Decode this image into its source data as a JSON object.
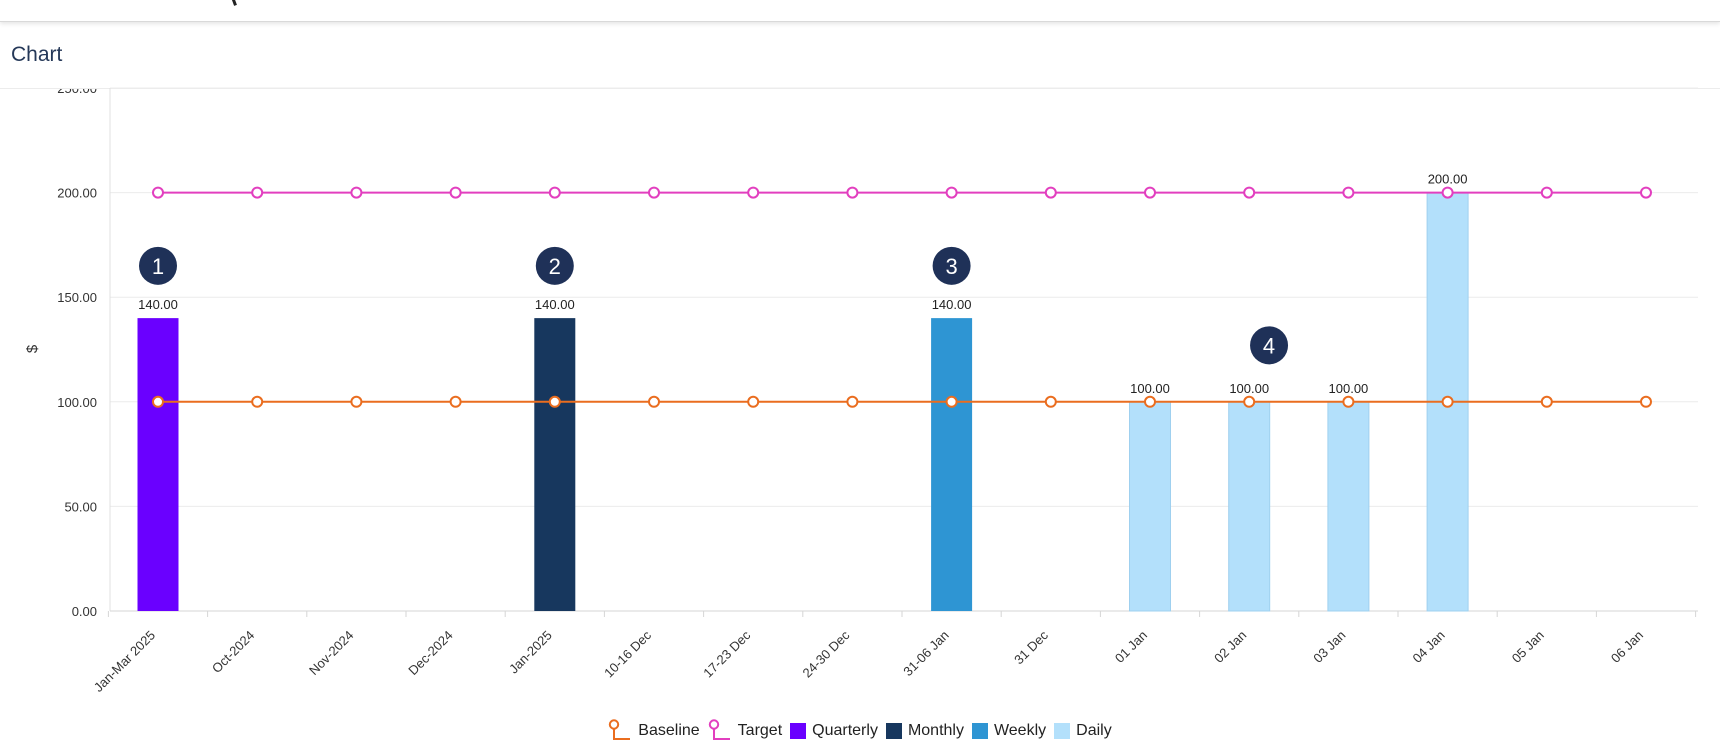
{
  "panel": {
    "title": "Chart"
  },
  "chart_data": {
    "type": "bar",
    "categories": [
      "Jan-Mar 2025",
      "Oct-2024",
      "Nov-2024",
      "Dec-2024",
      "Jan-2025",
      "10-16 Dec",
      "17-23 Dec",
      "24-30 Dec",
      "31-06 Jan",
      "31 Dec",
      "01 Jan",
      "02 Jan",
      "03 Jan",
      "04 Jan",
      "05 Jan",
      "06 Jan"
    ],
    "series": [
      {
        "name": "Quarterly",
        "color": "#6a00ff",
        "values": [
          140,
          null,
          null,
          null,
          null,
          null,
          null,
          null,
          null,
          null,
          null,
          null,
          null,
          null,
          null,
          null
        ]
      },
      {
        "name": "Monthly",
        "color": "#17375e",
        "values": [
          null,
          null,
          null,
          null,
          140,
          null,
          null,
          null,
          null,
          null,
          null,
          null,
          null,
          null,
          null,
          null
        ]
      },
      {
        "name": "Weekly",
        "color": "#2e95d3",
        "values": [
          null,
          null,
          null,
          null,
          null,
          null,
          null,
          null,
          140,
          null,
          null,
          null,
          null,
          null,
          null,
          null
        ]
      },
      {
        "name": "Daily",
        "color": "#b3e0fb",
        "values": [
          null,
          null,
          null,
          null,
          null,
          null,
          null,
          null,
          null,
          null,
          100,
          100,
          100,
          200,
          null,
          null
        ]
      }
    ],
    "lines": [
      {
        "name": "Baseline",
        "color": "#ea6d1f",
        "values": [
          100,
          100,
          100,
          100,
          100,
          100,
          100,
          100,
          100,
          100,
          100,
          100,
          100,
          100,
          100,
          100
        ]
      },
      {
        "name": "Target",
        "color": "#e23fbf",
        "values": [
          200,
          200,
          200,
          200,
          200,
          200,
          200,
          200,
          200,
          200,
          200,
          200,
          200,
          200,
          200,
          200
        ]
      }
    ],
    "data_labels": [
      {
        "index": 0,
        "text": "140.00"
      },
      {
        "index": 4,
        "text": "140.00"
      },
      {
        "index": 8,
        "text": "140.00"
      },
      {
        "index": 10,
        "text": "100.00"
      },
      {
        "index": 11,
        "text": "100.00"
      },
      {
        "index": 12,
        "text": "100.00"
      },
      {
        "index": 13,
        "text": "200.00"
      }
    ],
    "y_ticks": [
      {
        "value": 0,
        "label": "0.00"
      },
      {
        "value": 50,
        "label": "50.00"
      },
      {
        "value": 100,
        "label": "100.00"
      },
      {
        "value": 150,
        "label": "150.00"
      },
      {
        "value": 200,
        "label": "200.00"
      },
      {
        "value": 250,
        "label": "250.00"
      }
    ],
    "ylabel": "$",
    "xlabel": "",
    "ylim": [
      0,
      250
    ],
    "grid": true,
    "legend_position": "bottom-center",
    "markers": [
      {
        "label": "1",
        "index": 0,
        "value": 165
      },
      {
        "label": "2",
        "index": 4,
        "value": 165
      },
      {
        "label": "3",
        "index": 8,
        "value": 165
      },
      {
        "label": "4",
        "index": 11.2,
        "value": 127
      }
    ]
  },
  "legend": {
    "items": [
      {
        "label": "Baseline",
        "kind": "line-marker",
        "color": "#ea6d1f"
      },
      {
        "label": "Target",
        "kind": "line-marker",
        "color": "#e23fbf"
      },
      {
        "label": "Quarterly",
        "kind": "swatch",
        "color": "#6a00ff"
      },
      {
        "label": "Monthly",
        "kind": "swatch",
        "color": "#17375e"
      },
      {
        "label": "Weekly",
        "kind": "swatch",
        "color": "#2e95d3"
      },
      {
        "label": "Daily",
        "kind": "swatch",
        "color": "#b3e0fb"
      }
    ]
  },
  "marker_style": {
    "fill": "#1f3158",
    "text_color": "#ffffff"
  }
}
